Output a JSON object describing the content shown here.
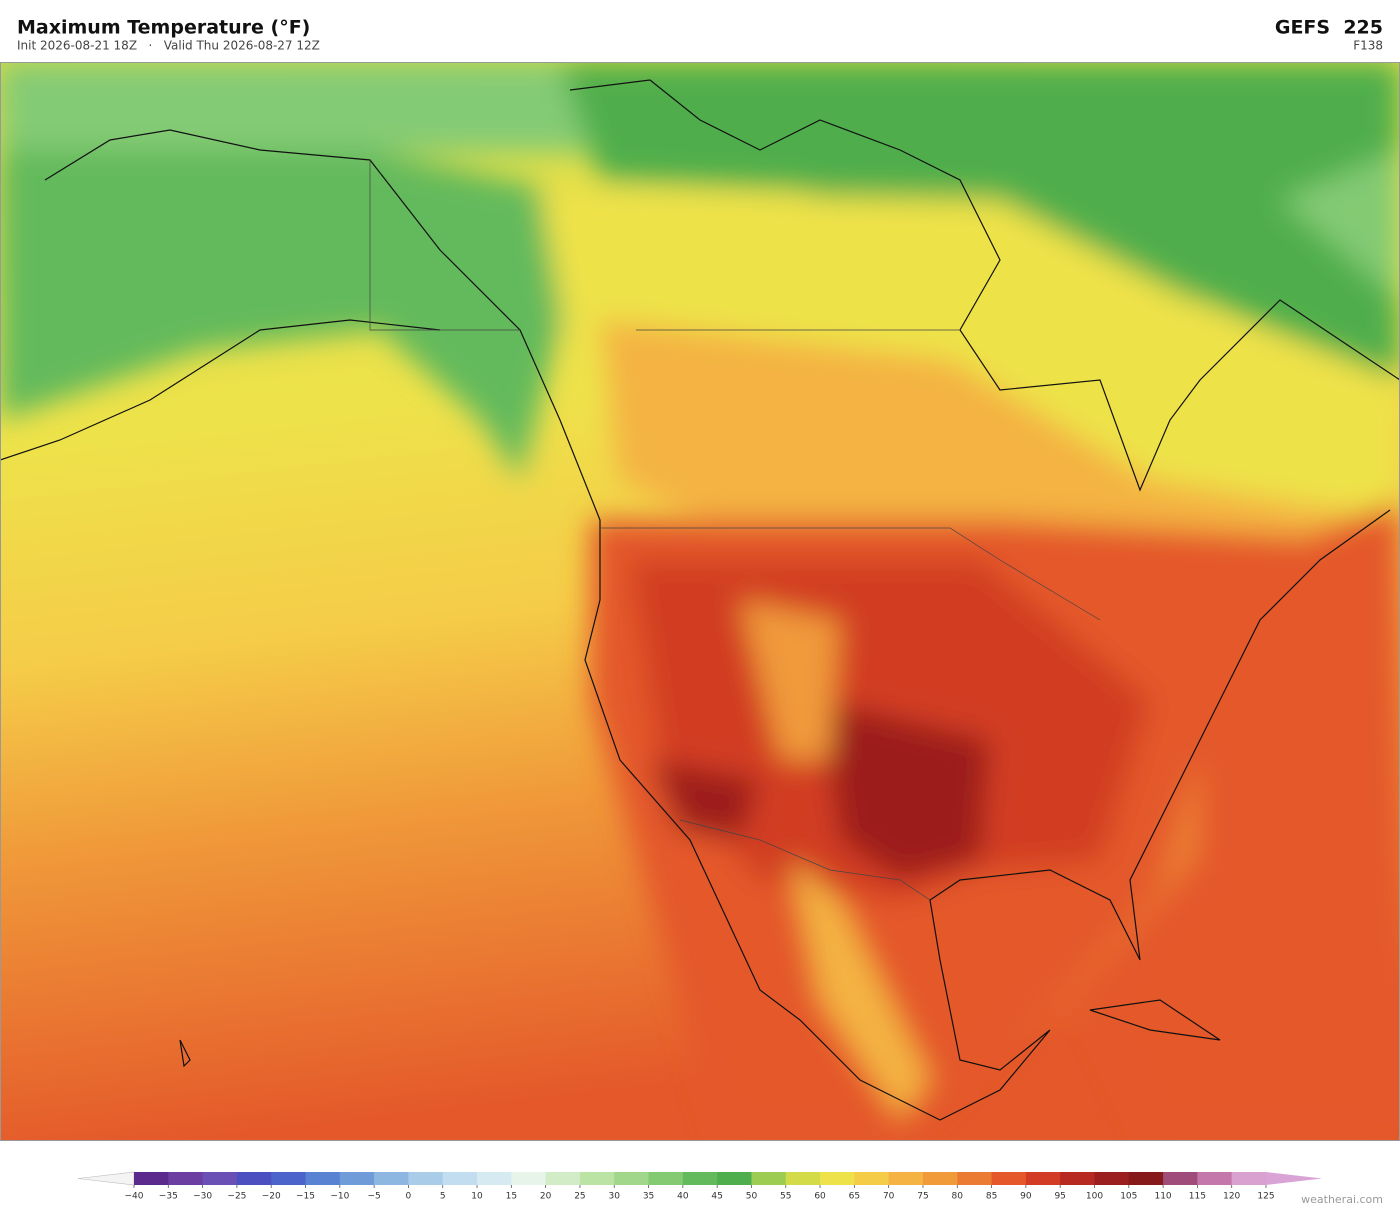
{
  "header": {
    "title": "Maximum Temperature  (°F)",
    "subtitle": "Init 2026-08-21 18Z   ·   Valid Thu 2026-08-27 12Z",
    "model": "GEFS  225",
    "forecast_hour": "F138"
  },
  "colorbar": {
    "ticks": [
      {
        "value": -40,
        "label": "−40"
      },
      {
        "value": -35,
        "label": "−35"
      },
      {
        "value": -30,
        "label": "−30"
      },
      {
        "value": -25,
        "label": "−25"
      },
      {
        "value": -20,
        "label": "−20"
      },
      {
        "value": -15,
        "label": "−15"
      },
      {
        "value": -10,
        "label": "−10"
      },
      {
        "value": -5,
        "label": "−5"
      },
      0,
      5,
      10,
      15,
      20,
      25,
      30,
      35,
      40,
      45,
      50,
      55,
      60,
      65,
      70,
      75,
      80,
      85,
      90,
      95,
      100,
      105,
      110,
      115,
      120,
      125
    ],
    "colors": [
      "#5b2a8c",
      "#6c3ea2",
      "#6a50b4",
      "#4c4fc0",
      "#4d63cc",
      "#5a82d2",
      "#6f9bd8",
      "#8db7e1",
      "#a9cde9",
      "#c1ddef",
      "#d6eaf2",
      "#e6f4ea",
      "#d1ecc6",
      "#bbe3a3",
      "#a1d78a",
      "#83ca73",
      "#63ba5c",
      "#4fae4c",
      "#9ccc52",
      "#d3dc48",
      "#eee24a",
      "#f5cc48",
      "#f4b343",
      "#f09a3a",
      "#eb7b33",
      "#e4582a",
      "#d23c24",
      "#b72a22",
      "#9c1f1f",
      "#861919",
      "#a04c7a",
      "#c477ab",
      "#d8a1d0"
    ],
    "under_color": "#f4f4f4",
    "over_color": "#d9a3d6"
  },
  "footer": {
    "credit": "weatherai.com"
  }
}
